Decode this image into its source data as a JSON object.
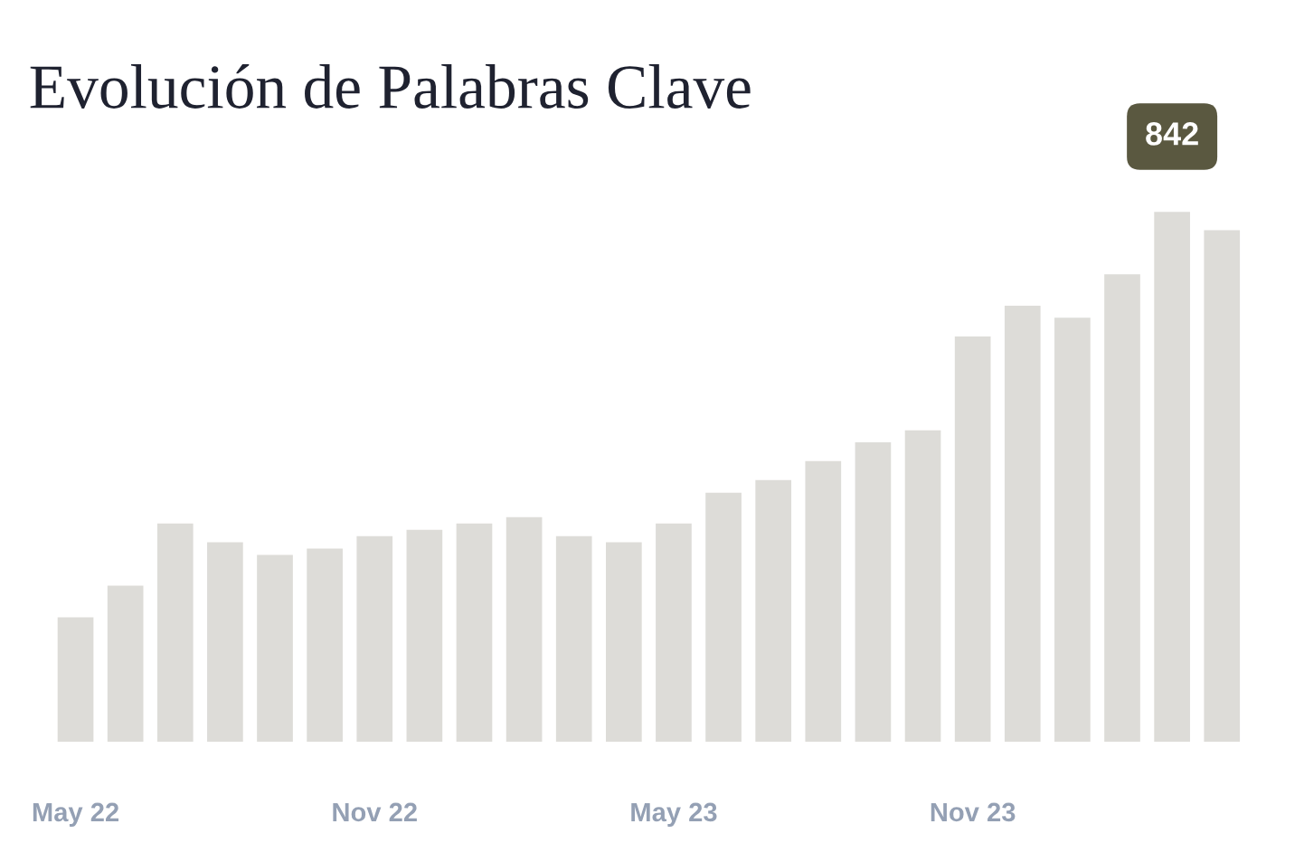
{
  "chart_data": {
    "type": "bar",
    "title": "Evolución de Palabras Clave",
    "categories": [
      "May 22",
      null,
      null,
      null,
      null,
      null,
      "Nov 22",
      null,
      null,
      null,
      null,
      null,
      "May 23",
      null,
      null,
      null,
      null,
      null,
      "Nov 23",
      null,
      null,
      null,
      null,
      null
    ],
    "values": [
      198,
      248,
      347,
      317,
      297,
      307,
      327,
      337,
      347,
      357,
      327,
      317,
      347,
      396,
      416,
      446,
      476,
      495,
      644,
      693,
      674,
      743,
      842,
      813
    ],
    "value_labels": [
      null,
      null,
      null,
      null,
      null,
      null,
      null,
      null,
      null,
      null,
      null,
      null,
      null,
      null,
      null,
      null,
      null,
      null,
      null,
      null,
      null,
      null,
      "842",
      null
    ],
    "color": "#dddcd8",
    "grid": false,
    "legend": false
  }
}
